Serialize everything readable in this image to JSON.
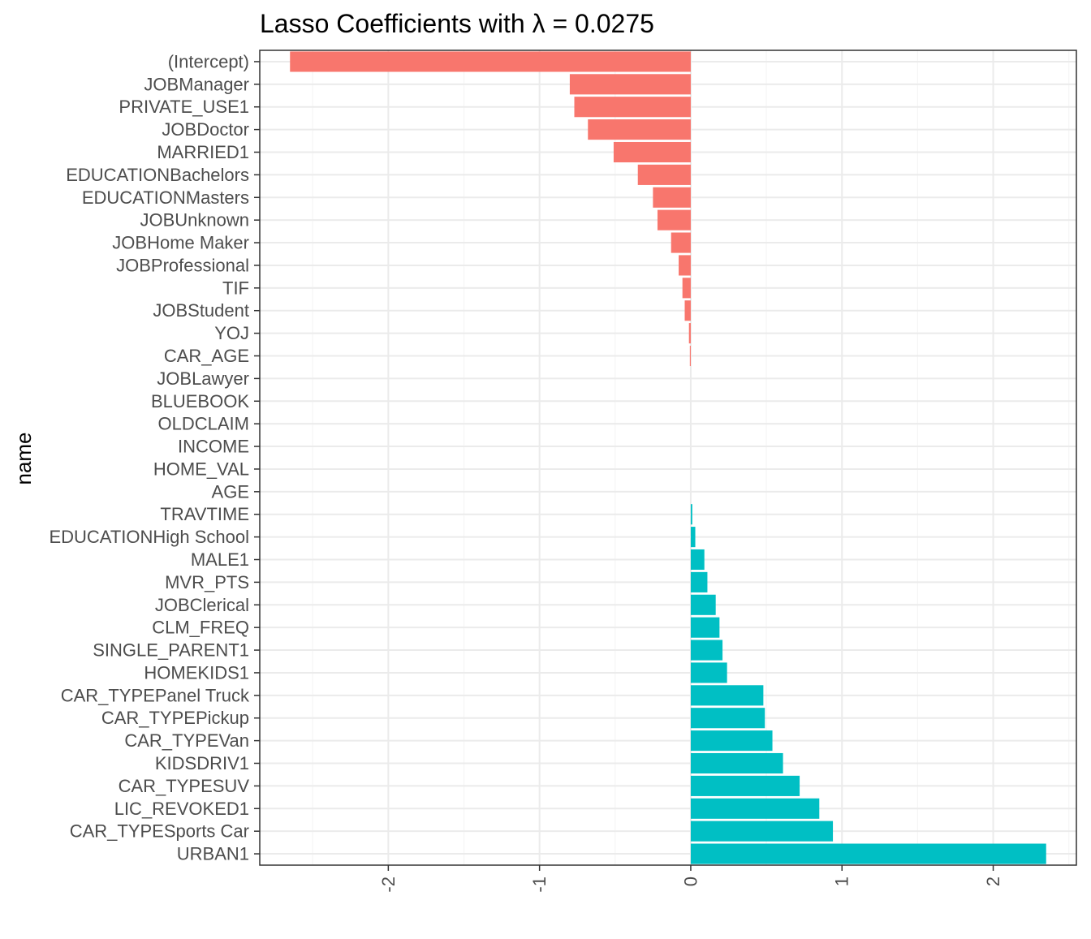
{
  "chart_data": {
    "type": "bar",
    "orientation": "horizontal",
    "title": "Lasso Coefficients with λ = 0.0275",
    "xlabel": "",
    "ylabel": "name",
    "xlim": [
      -2.85,
      2.55
    ],
    "x_ticks": [
      -2,
      -1,
      0,
      1,
      2
    ],
    "x_tick_labels": [
      "-2",
      "-1",
      "0",
      "1",
      "2"
    ],
    "grid": true,
    "legend": "none",
    "colors": {
      "negative": "#F8766D",
      "positive": "#00BFC4",
      "panel_border": "#333333",
      "grid_major": "#ebebeb",
      "grid_minor": "#f5f5f5"
    },
    "categories": [
      "(Intercept)",
      "JOBManager",
      "PRIVATE_USE1",
      "JOBDoctor",
      "MARRIED1",
      "EDUCATIONBachelors",
      "EDUCATIONMasters",
      "JOBUnknown",
      "JOBHome Maker",
      "JOBProfessional",
      "TIF",
      "JOBStudent",
      "YOJ",
      "CAR_AGE",
      "JOBLawyer",
      "BLUEBOOK",
      "OLDCLAIM",
      "INCOME",
      "HOME_VAL",
      "AGE",
      "TRAVTIME",
      "EDUCATIONHigh School",
      "MALE1",
      "MVR_PTS",
      "JOBClerical",
      "CLM_FREQ",
      "SINGLE_PARENT1",
      "HOMEKIDS1",
      "CAR_TYPEPanel Truck",
      "CAR_TYPEPickup",
      "CAR_TYPEVan",
      "KIDSDRIV1",
      "CAR_TYPESUV",
      "LIC_REVOKED1",
      "CAR_TYPESports Car",
      "URBAN1"
    ],
    "values": [
      -2.65,
      -0.8,
      -0.77,
      -0.68,
      -0.51,
      -0.35,
      -0.25,
      -0.22,
      -0.13,
      -0.08,
      -0.055,
      -0.04,
      -0.012,
      -0.006,
      0.0,
      0.0,
      0.0,
      0.0,
      0.0,
      0.0,
      0.01,
      0.03,
      0.09,
      0.11,
      0.165,
      0.19,
      0.21,
      0.24,
      0.48,
      0.49,
      0.54,
      0.61,
      0.72,
      0.85,
      0.94,
      2.35
    ]
  }
}
